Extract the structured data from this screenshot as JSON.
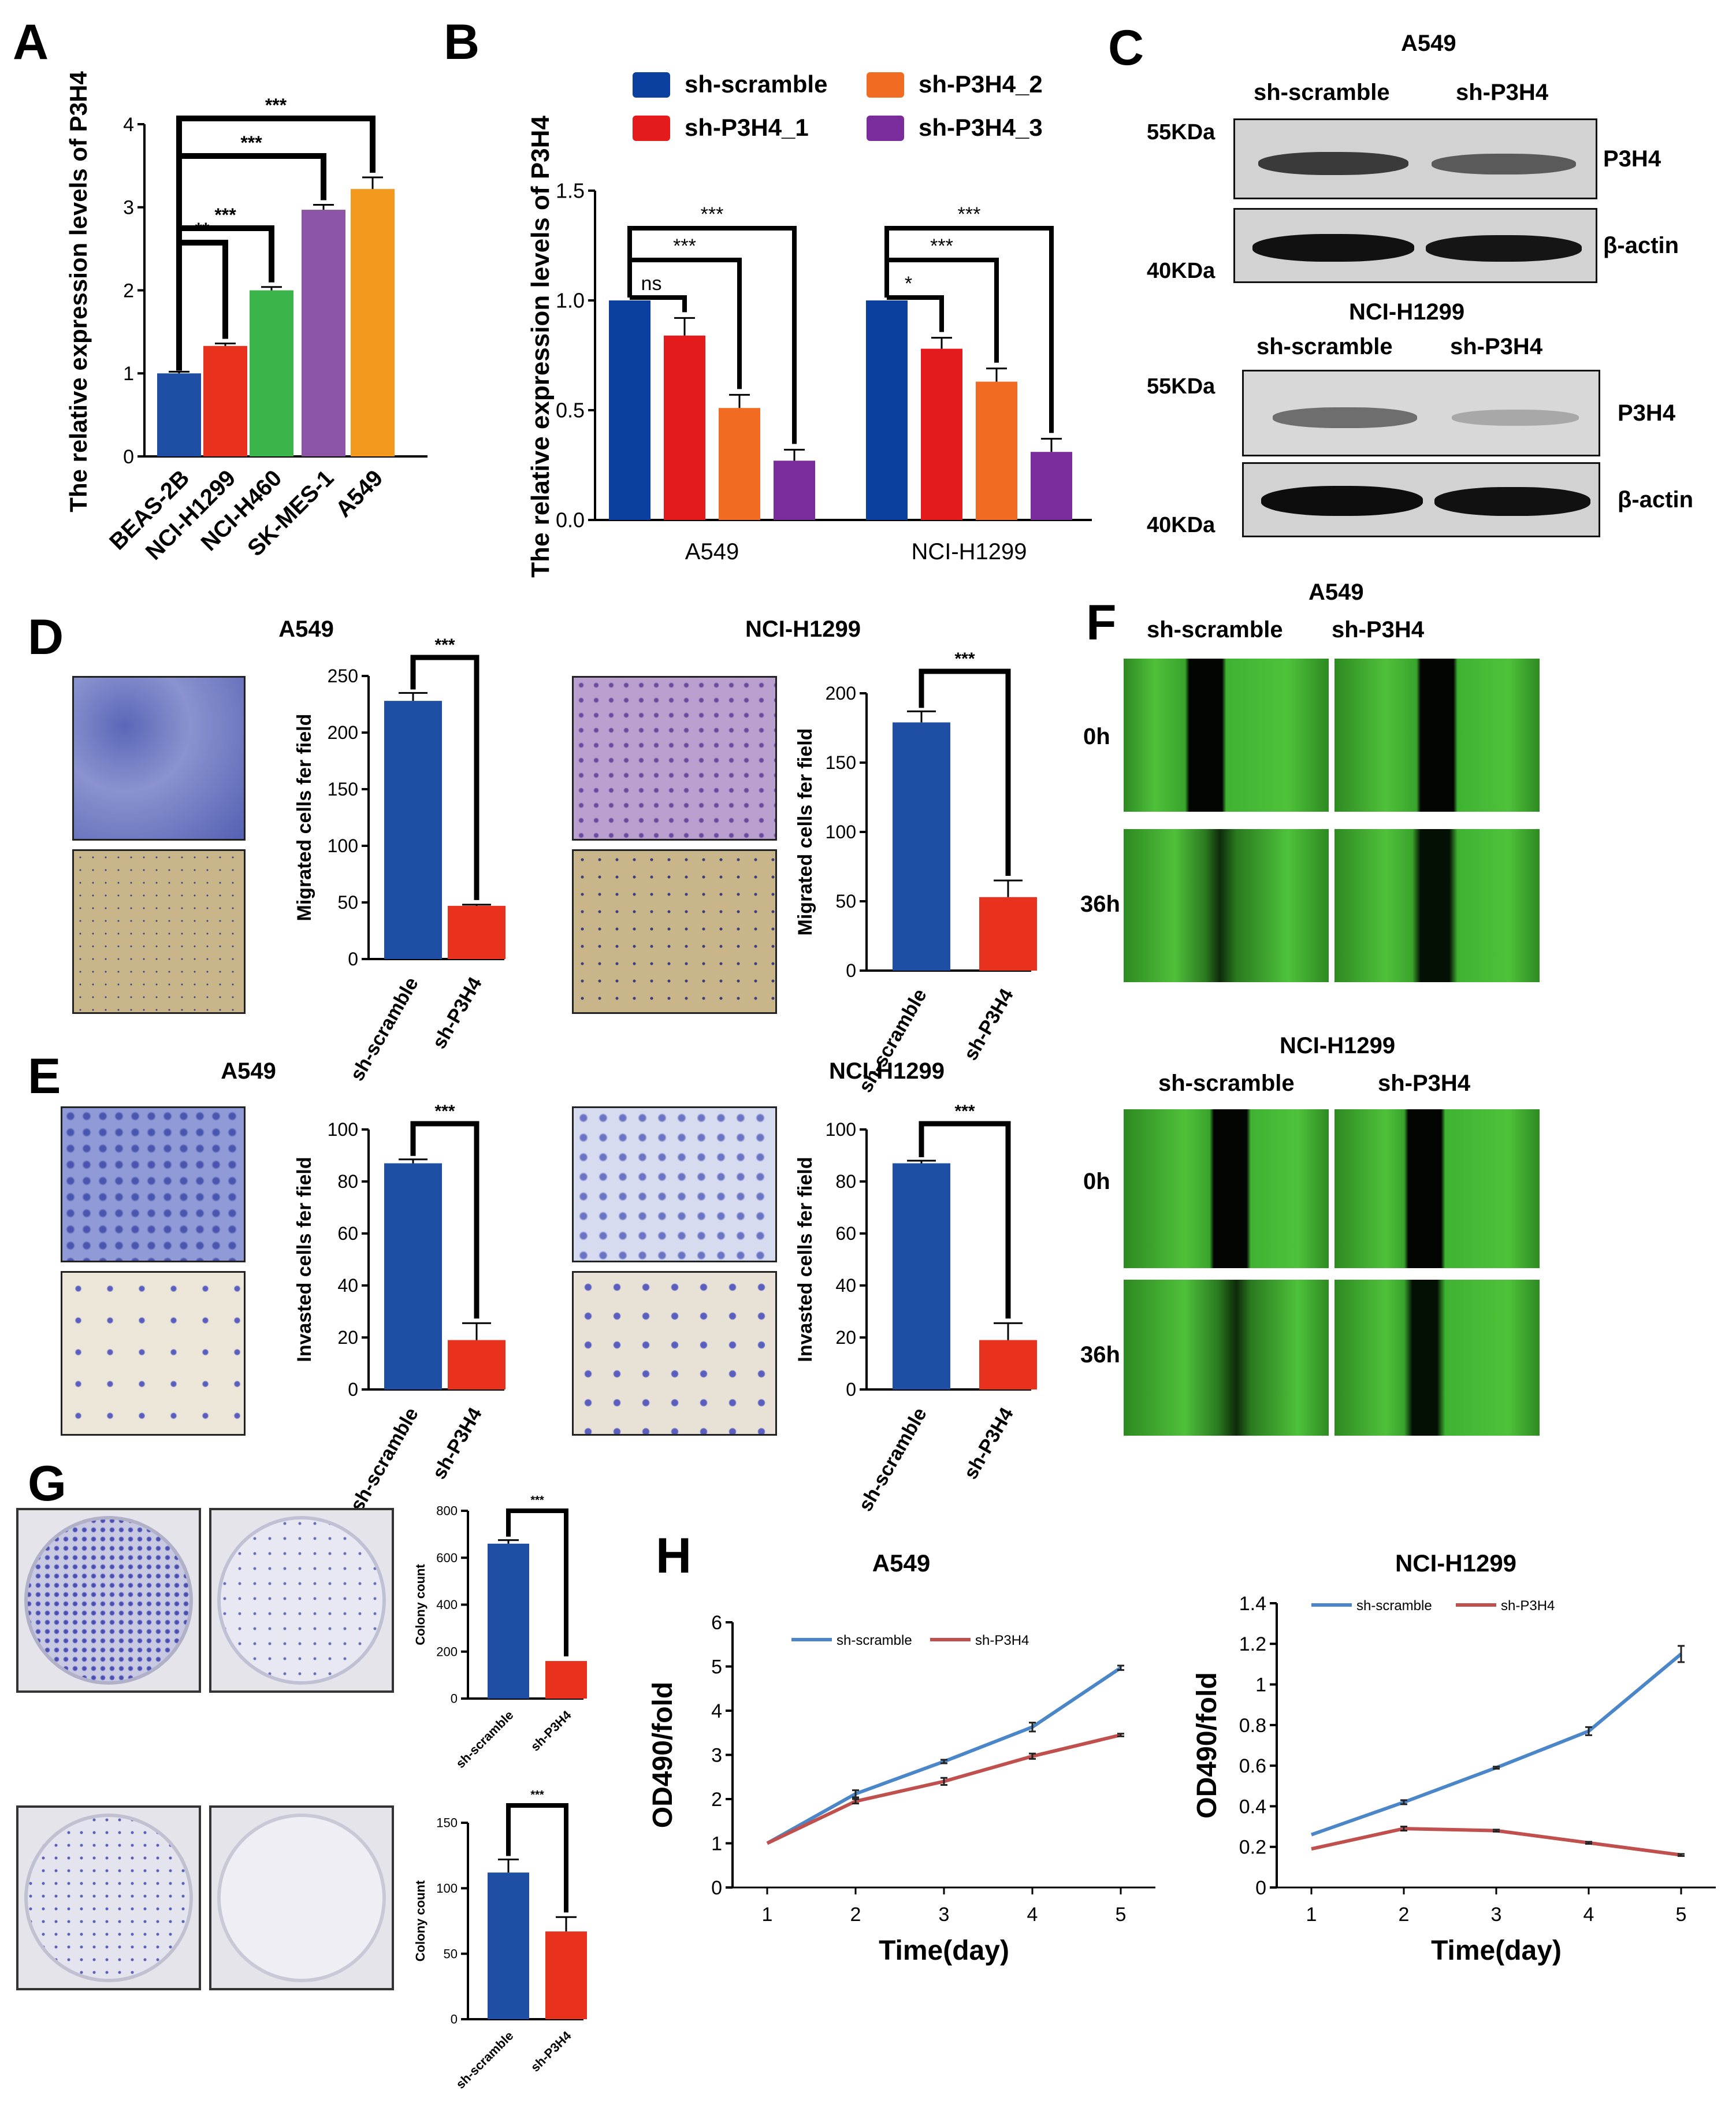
{
  "panels": {
    "A": "A",
    "B": "B",
    "C": "C",
    "D": "D",
    "E": "E",
    "F": "F",
    "G": "G",
    "H": "H"
  },
  "colors": {
    "blue": "#1f4fa5",
    "red": "#e8321e",
    "green": "#3bb54a",
    "purple": "#8d55a6",
    "orange": "#f39a1e",
    "deep_blue": "#0b3fa0",
    "b_red": "#e41a1c",
    "b_orange": "#f26b22",
    "b_purple": "#7a2c9c",
    "line_blue": "#4a86c8",
    "line_red": "#c0504d"
  },
  "common": {
    "sh_scramble": "sh-scramble",
    "sh_p3h4": "sh-P3H4",
    "a549": "A549",
    "h1299": "NCI-H1299",
    "h0": "0h",
    "h36": "36h"
  },
  "C": {
    "a549_title": "A549",
    "h1299_title": "NCI-H1299",
    "kda55": "55KDa",
    "kda40": "40KDa",
    "p3h4": "P3H4",
    "actin": "β-actin"
  },
  "chart_data": [
    {
      "id": "A",
      "type": "bar",
      "categories": [
        "BEAS-2B",
        "NCI-H1299",
        "NCI-H460",
        "SK-MES-1",
        "A549"
      ],
      "values": [
        1.0,
        1.33,
        2.0,
        2.97,
        3.22
      ],
      "errors": [
        0.02,
        0.03,
        0.04,
        0.06,
        0.14
      ],
      "ylabel": "The relative expression levels of P3H4",
      "ylim": [
        0,
        4
      ],
      "yticks": [
        "0",
        "1",
        "2",
        "3",
        "4"
      ],
      "significance": [
        "**",
        "***",
        "***",
        "***"
      ]
    },
    {
      "id": "B",
      "type": "bar",
      "categories": [
        "A549",
        "NCI-H1299"
      ],
      "series": [
        {
          "name": "sh-scramble",
          "values": [
            1.0,
            1.0
          ],
          "errors": [
            0.0,
            0.0
          ]
        },
        {
          "name": "sh-P3H4_1",
          "values": [
            0.84,
            0.78
          ],
          "errors": [
            0.08,
            0.05
          ]
        },
        {
          "name": "sh-P3H4_2",
          "values": [
            0.51,
            0.63
          ],
          "errors": [
            0.06,
            0.06
          ]
        },
        {
          "name": "sh-P3H4_3",
          "values": [
            0.27,
            0.31
          ],
          "errors": [
            0.05,
            0.06
          ]
        }
      ],
      "ylabel": "The relative expression levels of P3H4",
      "ylim": [
        0,
        1.5
      ],
      "yticks": [
        "0.0",
        "0.5",
        "1.0",
        "1.5"
      ],
      "significance": {
        "A549": [
          "ns",
          "***",
          "***"
        ],
        "NCI-H1299": [
          "*",
          "***",
          "***"
        ]
      }
    },
    {
      "id": "D1",
      "type": "bar",
      "title": "A549",
      "categories": [
        "sh-scramble",
        "sh-P3H4"
      ],
      "values": [
        228,
        47
      ],
      "errors": [
        7,
        1
      ],
      "ylabel": "Migrated cells fer field",
      "ylim": [
        0,
        250
      ],
      "yticks": [
        "0",
        "50",
        "100",
        "150",
        "200",
        "250"
      ],
      "significance": "***"
    },
    {
      "id": "D2",
      "type": "bar",
      "title": "NCI-H1299",
      "categories": [
        "sh-scramble",
        "sh-P3H4"
      ],
      "values": [
        179,
        53
      ],
      "errors": [
        8,
        12
      ],
      "ylabel": "Migrated cells fer field",
      "ylim": [
        0,
        200
      ],
      "yticks": [
        "0",
        "50",
        "100",
        "150",
        "200"
      ],
      "significance": "***"
    },
    {
      "id": "E1",
      "type": "bar",
      "title": "A549",
      "categories": [
        "sh-scramble",
        "sh-P3H4"
      ],
      "values": [
        87,
        19
      ],
      "errors": [
        1.5,
        6.5
      ],
      "ylabel": "Invasted cells fer field",
      "ylim": [
        0,
        100
      ],
      "yticks": [
        "0",
        "20",
        "40",
        "60",
        "80",
        "100"
      ],
      "significance": "***"
    },
    {
      "id": "E2",
      "type": "bar",
      "title": "NCI-H1299",
      "categories": [
        "sh-scramble",
        "sh-P3H4"
      ],
      "values": [
        87,
        19
      ],
      "errors": [
        1,
        6.5
      ],
      "ylabel": "Invasted cells fer field",
      "ylim": [
        0,
        100
      ],
      "yticks": [
        "0",
        "20",
        "40",
        "60",
        "80",
        "100"
      ],
      "significance": "***"
    },
    {
      "id": "G1",
      "type": "bar",
      "categories": [
        "sh-scramble",
        "sh-P3H4"
      ],
      "values": [
        660,
        160
      ],
      "errors": [
        15,
        0
      ],
      "ylabel": "Colony count",
      "ylim": [
        0,
        800
      ],
      "yticks": [
        "0",
        "200",
        "400",
        "600",
        "800"
      ],
      "significance": "***"
    },
    {
      "id": "G2",
      "type": "bar",
      "categories": [
        "sh-scramble",
        "sh-P3H4"
      ],
      "values": [
        112,
        67
      ],
      "errors": [
        10,
        11
      ],
      "ylabel": "Colony count",
      "ylim": [
        0,
        150
      ],
      "yticks": [
        "0",
        "50",
        "100",
        "150"
      ],
      "significance": "***"
    },
    {
      "id": "H1",
      "type": "line",
      "title": "A549",
      "x": [
        1,
        2,
        3,
        4,
        5
      ],
      "series": [
        {
          "name": "sh-scramble",
          "values": [
            1.0,
            2.12,
            2.85,
            3.63,
            4.97
          ],
          "errors": [
            0,
            0.08,
            0.04,
            0.1,
            0.05
          ]
        },
        {
          "name": "sh-P3H4",
          "values": [
            1.0,
            1.95,
            2.4,
            2.97,
            3.45
          ],
          "errors": [
            0,
            0.05,
            0.08,
            0.06,
            0.03
          ]
        }
      ],
      "xlabel": "Time(day)",
      "ylabel": "OD490/fold",
      "ylim": [
        0,
        6
      ],
      "yticks": [
        "0",
        "1",
        "2",
        "3",
        "4",
        "5",
        "6"
      ],
      "xticks": [
        "1",
        "2",
        "3",
        "4",
        "5"
      ]
    },
    {
      "id": "H2",
      "type": "line",
      "title": "NCI-H1299",
      "x": [
        1,
        2,
        3,
        4,
        5
      ],
      "series": [
        {
          "name": "sh-scramble",
          "values": [
            0.26,
            0.42,
            0.59,
            0.77,
            1.15
          ],
          "errors": [
            0,
            0.01,
            0.005,
            0.02,
            0.04
          ]
        },
        {
          "name": "sh-P3H4",
          "values": [
            0.19,
            0.29,
            0.28,
            0.22,
            0.16
          ],
          "errors": [
            0,
            0.01,
            0.005,
            0.005,
            0.005
          ]
        }
      ],
      "xlabel": "Time(day)",
      "ylabel": "OD490/fold",
      "ylim": [
        0,
        1.4
      ],
      "yticks": [
        "0",
        "0.2",
        "0.4",
        "0.6",
        "0.8",
        "1",
        "1.2",
        "1.4"
      ],
      "xticks": [
        "1",
        "2",
        "3",
        "4",
        "5"
      ]
    }
  ]
}
